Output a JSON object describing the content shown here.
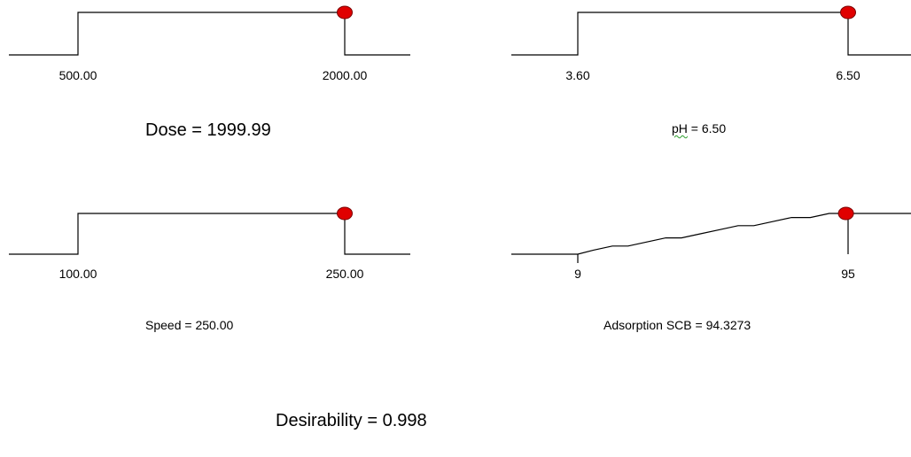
{
  "chart_data": [
    {
      "type": "line",
      "factor": "Dose",
      "x_range": [
        500.0,
        2000.0
      ],
      "tick_labels": [
        "500.00",
        "2000.00"
      ],
      "desirability_points": [
        [
          500.0,
          1
        ],
        [
          2000.0,
          1
        ]
      ],
      "selected_value": 1999.99,
      "caption": {
        "name": "Dose",
        "equals": " = ",
        "value": "1999.99"
      }
    },
    {
      "type": "line",
      "factor": "pH",
      "x_range": [
        3.6,
        6.5
      ],
      "tick_labels": [
        "3.60",
        "6.50"
      ],
      "desirability_points": [
        [
          3.6,
          1
        ],
        [
          6.5,
          1
        ]
      ],
      "selected_value": 6.5,
      "caption": {
        "name": "pH",
        "equals": " = ",
        "value": "6.50"
      }
    },
    {
      "type": "line",
      "factor": "Speed",
      "x_range": [
        100.0,
        250.0
      ],
      "tick_labels": [
        "100.00",
        "250.00"
      ],
      "desirability_points": [
        [
          100.0,
          1
        ],
        [
          250.0,
          1
        ]
      ],
      "selected_value": 250.0,
      "caption": {
        "name": "Speed",
        "equals": " = ",
        "value": "250.00"
      }
    },
    {
      "type": "line",
      "factor": "Adsorption SCB",
      "x_range": [
        9,
        95
      ],
      "tick_labels": [
        "9",
        "95"
      ],
      "response_curve": [
        [
          9,
          0.0
        ],
        [
          14,
          0.1
        ],
        [
          20,
          0.2
        ],
        [
          25,
          0.2
        ],
        [
          31,
          0.3
        ],
        [
          37,
          0.4
        ],
        [
          42,
          0.4
        ],
        [
          48,
          0.5
        ],
        [
          54,
          0.6
        ],
        [
          60,
          0.7
        ],
        [
          65,
          0.7
        ],
        [
          71,
          0.8
        ],
        [
          77,
          0.9
        ],
        [
          83,
          0.9
        ],
        [
          89,
          1.0
        ],
        [
          95,
          1.0
        ]
      ],
      "selected_value": 94.3273,
      "caption": {
        "name": "Adsorption SCB",
        "equals": " = ",
        "value": "94.3273"
      }
    }
  ],
  "desirability": {
    "label": "Desirability",
    "equals": " = ",
    "value": "0.998"
  },
  "colors": {
    "line": "#000000",
    "marker_fill": "#e00000",
    "marker_stroke": "#7a0000",
    "spellcheck": "#2a9d2a"
  }
}
